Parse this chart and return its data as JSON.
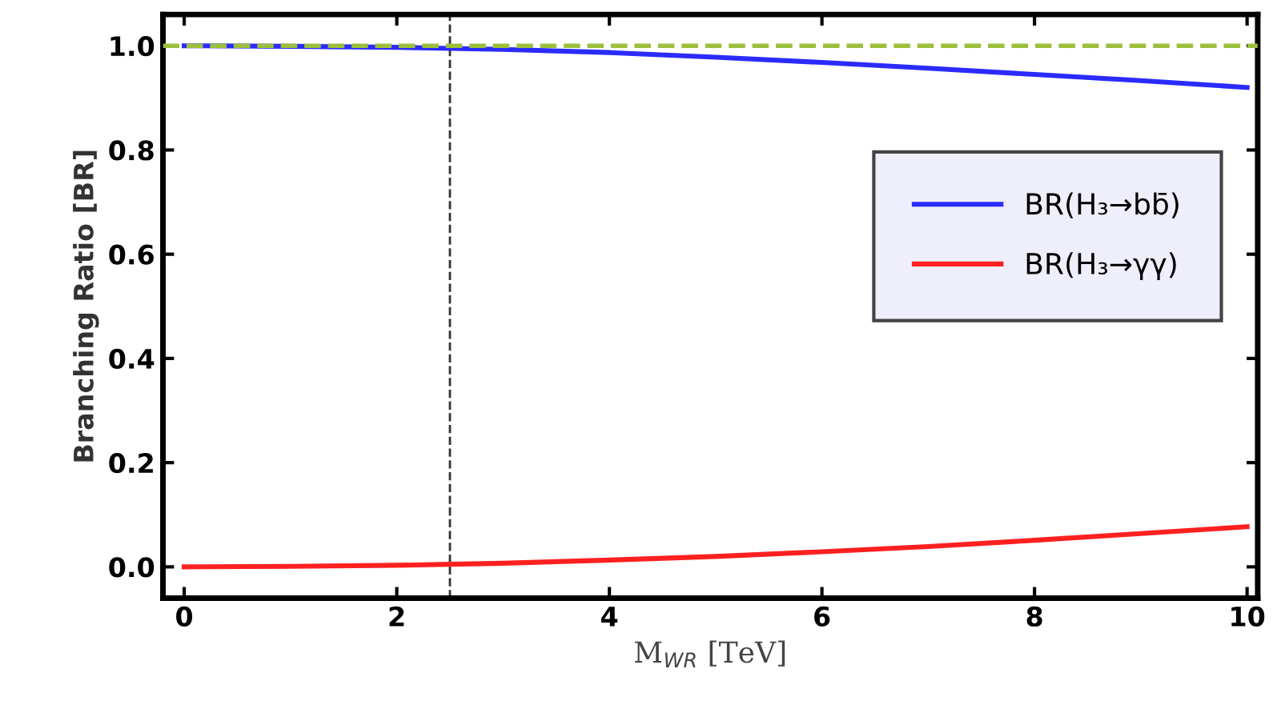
{
  "chart_data": {
    "type": "line",
    "xlabel": "M$_{WR}$ [TeV]",
    "ylabel": "Branching Ratio [BR]",
    "x": [
      0,
      1,
      2,
      2.5,
      3,
      4,
      5,
      6,
      7,
      8,
      9,
      10
    ],
    "series": [
      {
        "name": "BR(H₃→bb̄)",
        "color": "#2b2bff",
        "values": [
          1.0,
          0.999,
          0.997,
          0.995,
          0.993,
          0.987,
          0.978,
          0.968,
          0.957,
          0.945,
          0.933,
          0.92
        ]
      },
      {
        "name": "BR(H₃→γγ)",
        "color": "#ff2020",
        "values": [
          0.0,
          0.001,
          0.003,
          0.005,
          0.007,
          0.013,
          0.02,
          0.029,
          0.039,
          0.051,
          0.064,
          0.077
        ]
      }
    ],
    "ref_lines": [
      {
        "axis": "y",
        "value": 1.0,
        "color": "#9cbf3c",
        "line_style": "dashed"
      },
      {
        "axis": "x",
        "value": 2.5,
        "color": "#333333",
        "line_style": "dashed"
      }
    ],
    "xlim": [
      -0.2,
      10.1
    ],
    "ylim": [
      -0.06,
      1.06
    ],
    "xticks": [
      0,
      2,
      4,
      6,
      8,
      10
    ],
    "yticks": [
      {
        "value": 0.0,
        "label": "0.0"
      },
      {
        "value": 0.2,
        "label": "0.2"
      },
      {
        "value": 0.4,
        "label": "0.4"
      },
      {
        "value": 0.6,
        "label": "0.6"
      },
      {
        "value": 0.8,
        "label": "0.8"
      },
      {
        "value": 1.0,
        "label": "1.0"
      }
    ],
    "legend": "right",
    "grid": false,
    "marker": "none",
    "line_style": "solid"
  }
}
